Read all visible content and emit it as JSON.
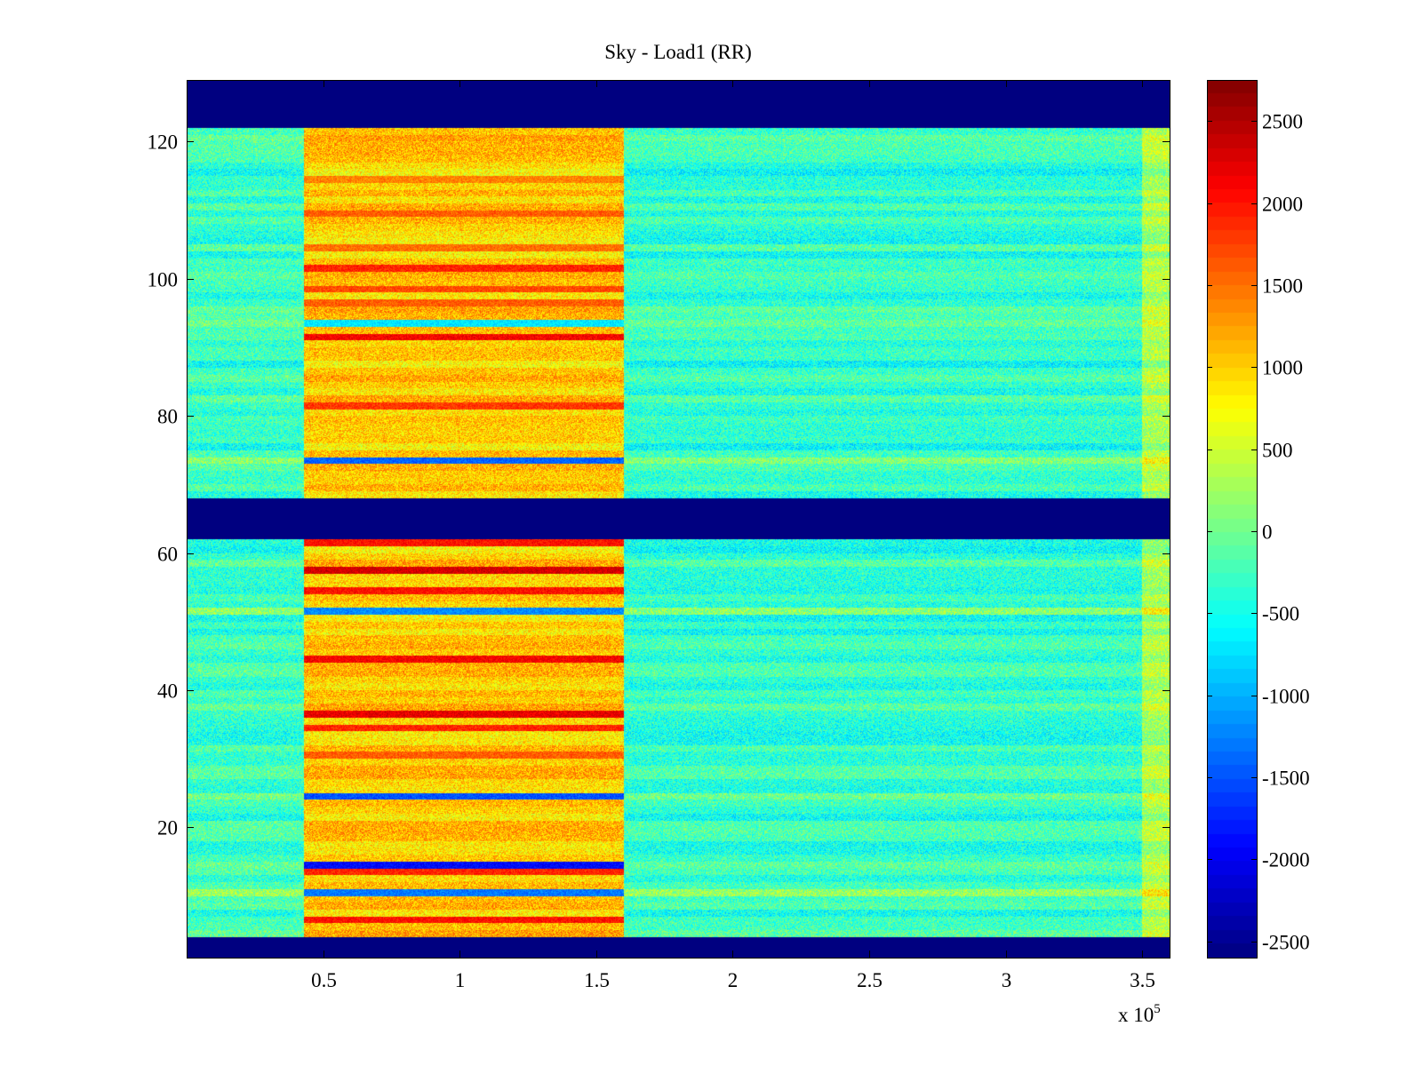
{
  "chart_data": {
    "type": "heatmap",
    "title": "Sky - Load1 (RR)",
    "xlabel": "",
    "ylabel": "",
    "x_exponent_label": "x 10",
    "x_exponent_power": "5",
    "xlim": [
      0,
      3.6
    ],
    "ylim": [
      1,
      129
    ],
    "x_ticks": [
      {
        "value": 0.5,
        "label": "0.5"
      },
      {
        "value": 1,
        "label": "1"
      },
      {
        "value": 1.5,
        "label": "1.5"
      },
      {
        "value": 2,
        "label": "2"
      },
      {
        "value": 2.5,
        "label": "2.5"
      },
      {
        "value": 3,
        "label": "3"
      },
      {
        "value": 3.5,
        "label": "3.5"
      }
    ],
    "y_ticks": [
      {
        "value": 20,
        "label": "20"
      },
      {
        "value": 40,
        "label": "40"
      },
      {
        "value": 60,
        "label": "60"
      },
      {
        "value": 80,
        "label": "80"
      },
      {
        "value": 100,
        "label": "100"
      },
      {
        "value": 120,
        "label": "120"
      }
    ],
    "colorbar": {
      "colormap": "jet",
      "range": [
        -2600,
        2750
      ],
      "ticks": [
        {
          "value": 2500,
          "label": "2500"
        },
        {
          "value": 2000,
          "label": "2000"
        },
        {
          "value": 1500,
          "label": "1500"
        },
        {
          "value": 1000,
          "label": "1000"
        },
        {
          "value": 500,
          "label": "500"
        },
        {
          "value": 0,
          "label": "0"
        },
        {
          "value": -500,
          "label": "-500"
        },
        {
          "value": -1000,
          "label": "-1000"
        },
        {
          "value": -1500,
          "label": "-1500"
        },
        {
          "value": -2000,
          "label": "-2000"
        },
        {
          "value": -2500,
          "label": "-2500"
        }
      ]
    },
    "masked_channel_ranges": [
      [
        1,
        4
      ],
      [
        62,
        68
      ],
      [
        122,
        129
      ]
    ],
    "regions": [
      {
        "x_range": [
          0,
          0.43
        ],
        "level": -300
      },
      {
        "x_range": [
          0.43,
          1.6
        ],
        "level": 1000
      },
      {
        "x_range": [
          1.6,
          3.5
        ],
        "level": -350
      },
      {
        "x_range": [
          3.5,
          3.6
        ],
        "level": 300
      }
    ],
    "strong_channels": [
      {
        "channel": 101,
        "level": 1900
      },
      {
        "channel": 98,
        "level": 1700
      },
      {
        "channel": 96,
        "level": 1600
      },
      {
        "channel": 91,
        "level": 2100
      },
      {
        "channel": 81,
        "level": 1800
      },
      {
        "channel": 109,
        "level": 1600
      },
      {
        "channel": 114,
        "level": 1400
      },
      {
        "channel": 104,
        "level": 1500
      },
      {
        "channel": 61,
        "level": 2000
      },
      {
        "channel": 57,
        "level": 2300
      },
      {
        "channel": 54,
        "level": 2000
      },
      {
        "channel": 44,
        "level": 2100
      },
      {
        "channel": 36,
        "level": 2200
      },
      {
        "channel": 34,
        "level": 1900
      },
      {
        "channel": 30,
        "level": 1600
      },
      {
        "channel": 13,
        "level": 1900
      },
      {
        "channel": 6,
        "level": 2000
      }
    ],
    "weak_channels": [
      {
        "channel": 73,
        "level": -1400
      },
      {
        "channel": 93,
        "level": -700
      },
      {
        "channel": 51,
        "level": -1200
      },
      {
        "channel": 24,
        "level": -1500
      },
      {
        "channel": 14,
        "level": -1900
      },
      {
        "channel": 10,
        "level": -1300
      }
    ]
  }
}
